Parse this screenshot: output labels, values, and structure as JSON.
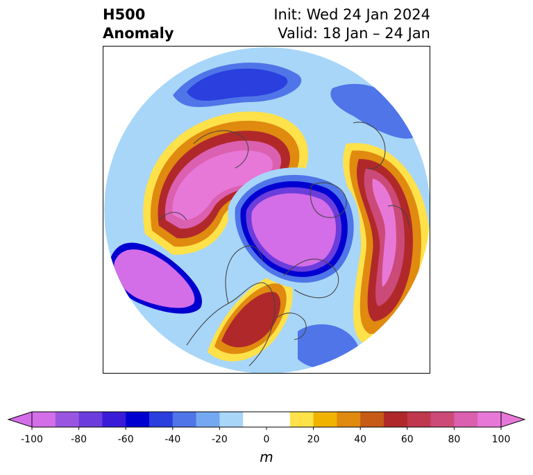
{
  "title": {
    "left_line1": "H500",
    "left_line2": "Anomaly",
    "right_line1": "Init: Wed 24 Jan 2024",
    "right_line2": "Valid: 18 Jan – 24 Jan"
  },
  "map": {
    "projection": "north-polar-stereographic",
    "field": "500 hPa geopotential height anomaly",
    "land_outline_color": "#444444"
  },
  "colorbar": {
    "unit": "m",
    "min": -100,
    "max": 100,
    "step": 10,
    "extend": "both",
    "tick_values": [
      -100,
      -80,
      -60,
      -40,
      -20,
      0,
      20,
      40,
      60,
      80,
      100
    ],
    "tick_labels": [
      "-100",
      "-80",
      "-60",
      "-40",
      "-20",
      "0",
      "20",
      "40",
      "60",
      "80",
      "100"
    ],
    "colors": [
      "#d46de8",
      "#9a55e0",
      "#6b3ddc",
      "#3a1cd8",
      "#0000d0",
      "#2a3fde",
      "#4f75e8",
      "#74a8f0",
      "#a8d6f8",
      "#ffffff",
      "#ffffff",
      "#ffe14a",
      "#f0b400",
      "#e08a10",
      "#c85a18",
      "#b0282a",
      "#c0384e",
      "#cc4a78",
      "#dc60b0",
      "#e878d8"
    ],
    "under_color": "#d46de8",
    "over_color": "#e878d8"
  }
}
